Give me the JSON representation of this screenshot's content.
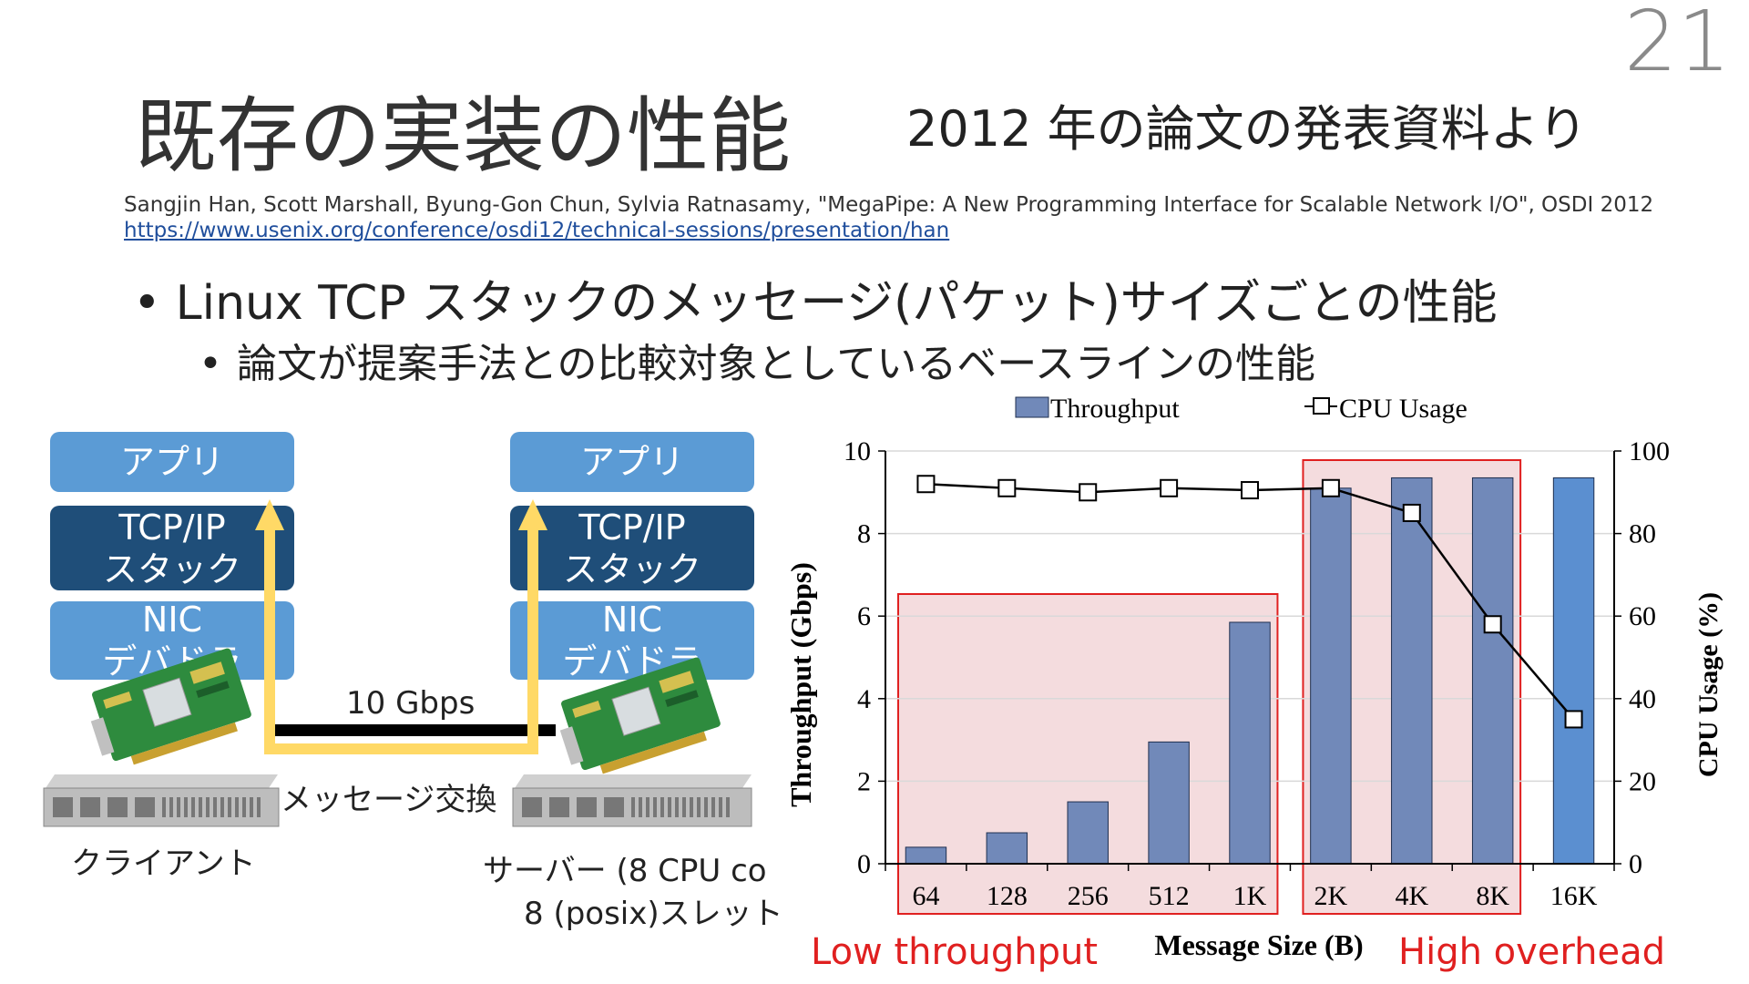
{
  "page_number": "21",
  "title": "既存の実装の性能",
  "subtitle": "2012 年の論文の発表資料より",
  "citation": "Sangjin Han, Scott Marshall, Byung-Gon Chun, Sylvia Ratnasamy, \"MegaPipe: A New Programming Interface for Scalable Network I/O\", OSDI 2012",
  "citation_url": "https://www.usenix.org/conference/osdi12/technical-sessions/presentation/han",
  "bullets": {
    "level1": "Linux TCP スタックのメッセージ(パケット)サイズごとの性能",
    "level2": "論文が提案手法との比較対象としているベースラインの性能",
    "dot1": "•",
    "dot2": "•"
  },
  "diagram": {
    "client_app": "アプリ",
    "client_tcp_line1": "TCP/IP",
    "client_tcp_line2": "スタック",
    "client_nic_line1": "NIC",
    "client_nic_line2": "デバドラ",
    "server_app": "アプリ",
    "server_tcp_line1": "TCP/IP",
    "server_tcp_line2": "スタック",
    "server_nic_line1": "NIC",
    "server_nic_line2": "デバドラ",
    "link_speed": "10 Gbps",
    "exchange": "メッセージ交換",
    "client_label": "クライアント",
    "server_label_line1": "サーバー (8 CPU co",
    "server_label_line2": "8 (posix)スレット",
    "colors": {
      "light_box": "#5b9bd5",
      "dark_box": "#1f4e79",
      "arrow": "#ffd966",
      "cable": "#000000"
    }
  },
  "annotations": {
    "low": "Low throughput",
    "high": "High overhead",
    "color": "#e02020",
    "fill": "#f2d6d8"
  },
  "chart_data": {
    "type": "bar",
    "categories": [
      "64",
      "128",
      "256",
      "512",
      "1K",
      "2K",
      "4K",
      "8K",
      "16K"
    ],
    "xlabel": "Message Size (B)",
    "ylabel": "Throughput (Gbps)",
    "y2label": "CPU Usage (%)",
    "ylim": [
      0,
      10
    ],
    "y2lim": [
      0,
      100
    ],
    "yticks": [
      "0",
      "2",
      "4",
      "6",
      "8",
      "10"
    ],
    "y2ticks": [
      "0",
      "20",
      "40",
      "60",
      "80",
      "100"
    ],
    "legend_placement": "top",
    "grid": true,
    "series": [
      {
        "name": "Throughput",
        "kind": "bar",
        "values": [
          0.4,
          0.75,
          1.5,
          2.95,
          5.85,
          9.1,
          9.35,
          9.35,
          9.35
        ],
        "color": "#7189b9",
        "last_color": "#5b8fd0"
      },
      {
        "name": "CPU Usage",
        "kind": "line",
        "axis": "right",
        "values": [
          92,
          91,
          90,
          91,
          90.5,
          91,
          85,
          58,
          35
        ],
        "color": "#000000"
      }
    ]
  }
}
